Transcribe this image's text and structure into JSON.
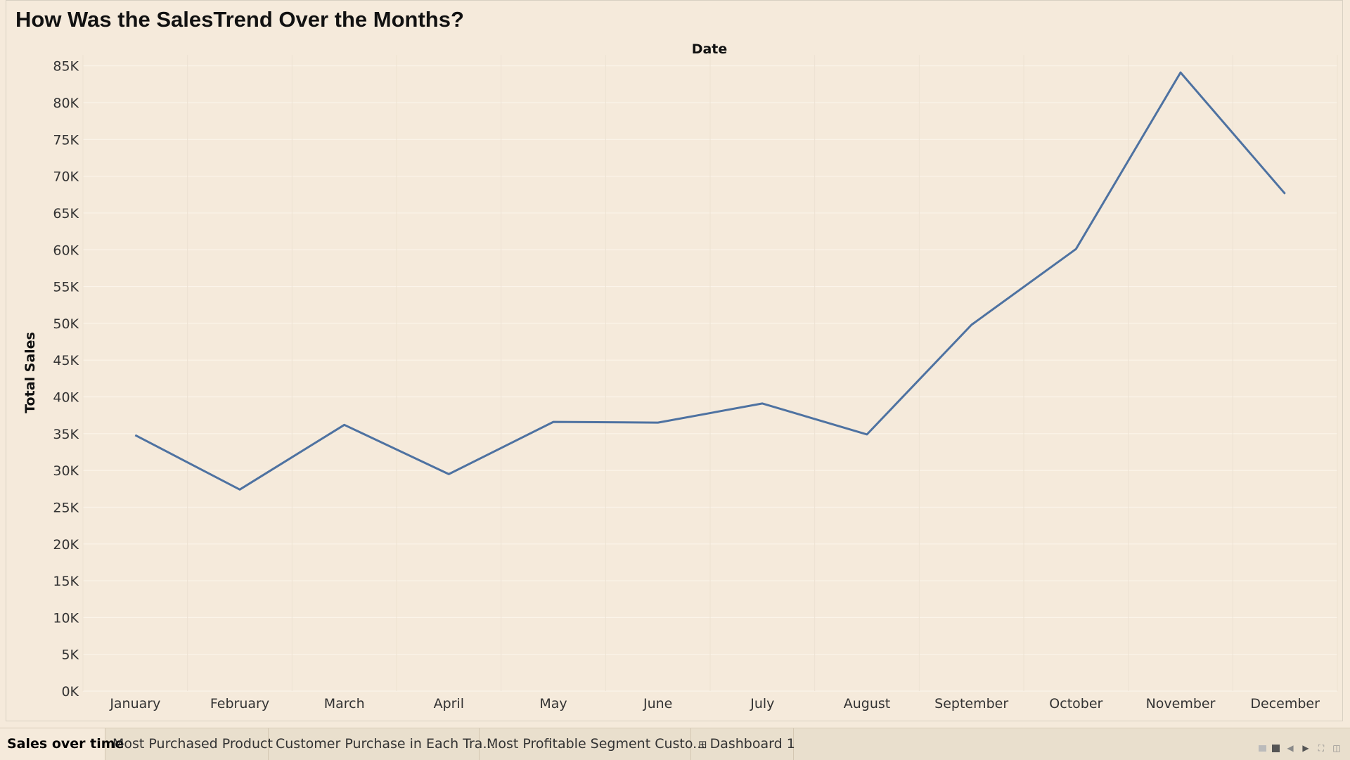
{
  "chart_data": {
    "type": "line",
    "title": "How Was the SalesTrend Over the Months?",
    "xlabel": "Date",
    "ylabel": "Total Sales",
    "categories": [
      "January",
      "February",
      "March",
      "April",
      "May",
      "June",
      "July",
      "August",
      "September",
      "October",
      "November",
      "December"
    ],
    "series": [
      {
        "values": [
          34800,
          27400,
          36200,
          29500,
          36600,
          36500,
          39100,
          34900,
          49800,
          60100,
          84100,
          67600
        ]
      }
    ],
    "ylim": [
      0,
      86500
    ],
    "yticks": [
      0,
      5000,
      10000,
      15000,
      20000,
      25000,
      30000,
      35000,
      40000,
      45000,
      50000,
      55000,
      60000,
      65000,
      70000,
      75000,
      80000,
      85000
    ],
    "ytick_labels": [
      "0K",
      "5K",
      "10K",
      "15K",
      "20K",
      "25K",
      "30K",
      "35K",
      "40K",
      "45K",
      "50K",
      "55K",
      "60K",
      "65K",
      "70K",
      "75K",
      "80K",
      "85K"
    ],
    "grid": true,
    "line_color": "#4e72a1"
  },
  "tabs": [
    {
      "label": "Sales over time",
      "active": true
    },
    {
      "label": "Most Purchased Product",
      "active": false
    },
    {
      "label": "Customer Purchase in Each Tra...",
      "active": false
    },
    {
      "label": "Most Profitable Segment Custo...",
      "active": false
    },
    {
      "label": "Dashboard 1",
      "active": false,
      "icon": "grid-icon"
    }
  ]
}
